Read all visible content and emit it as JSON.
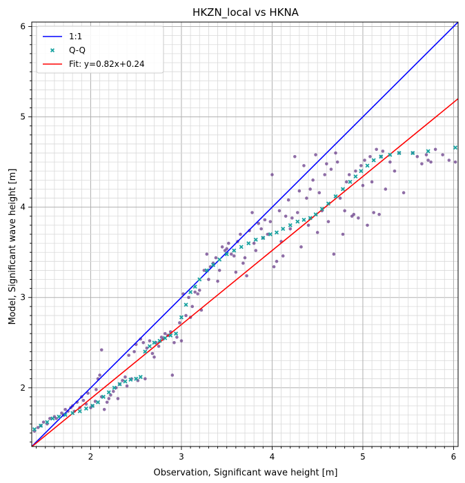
{
  "chart_data": {
    "type": "scatter",
    "title": "HKZN_local vs HKNA",
    "xlabel": "Observation, Significant wave height [m]",
    "ylabel": "Model, Significant wave height [m]",
    "xlim": [
      1.35,
      6.05
    ],
    "ylim": [
      1.35,
      6.05
    ],
    "xticks": [
      "2",
      "3",
      "4",
      "5",
      "6"
    ],
    "yticks": [
      "2",
      "3",
      "4",
      "5",
      "6"
    ],
    "grid": true,
    "legend_position": "top-left",
    "legend": [
      {
        "label": "1:1",
        "kind": "line",
        "color": "#0000ff"
      },
      {
        "label": "Q-Q",
        "kind": "marker",
        "color": "#17a2a0"
      },
      {
        "label": "Fit: y=0.82x+0.24",
        "kind": "line",
        "color": "#ff0000"
      }
    ],
    "fit": {
      "slope": 0.82,
      "intercept": 0.24
    },
    "points_color": "#6a3d8a",
    "qq_color": "#17a2a0",
    "scatter_points": [
      [
        1.38,
        1.52
      ],
      [
        1.42,
        1.56
      ],
      [
        1.45,
        1.58
      ],
      [
        1.48,
        1.62
      ],
      [
        1.52,
        1.6
      ],
      [
        1.55,
        1.66
      ],
      [
        1.6,
        1.68
      ],
      [
        1.62,
        1.66
      ],
      [
        1.68,
        1.72
      ],
      [
        1.7,
        1.7
      ],
      [
        1.72,
        1.76
      ],
      [
        1.75,
        1.74
      ],
      [
        1.78,
        1.78
      ],
      [
        1.8,
        1.8
      ],
      [
        1.82,
        1.74
      ],
      [
        1.85,
        1.84
      ],
      [
        1.88,
        1.78
      ],
      [
        1.9,
        1.9
      ],
      [
        1.92,
        1.86
      ],
      [
        1.95,
        1.82
      ],
      [
        1.97,
        1.94
      ],
      [
        2.0,
        1.78
      ],
      [
        2.02,
        1.8
      ],
      [
        2.05,
        1.85
      ],
      [
        2.06,
        1.98
      ],
      [
        2.08,
        2.1
      ],
      [
        2.1,
        2.14
      ],
      [
        2.12,
        2.42
      ],
      [
        2.12,
        1.9
      ],
      [
        2.15,
        1.76
      ],
      [
        2.18,
        1.84
      ],
      [
        2.2,
        1.88
      ],
      [
        2.22,
        1.92
      ],
      [
        2.25,
        1.96
      ],
      [
        2.28,
        2.0
      ],
      [
        2.3,
        1.88
      ],
      [
        2.32,
        2.04
      ],
      [
        2.35,
        2.08
      ],
      [
        2.38,
        2.12
      ],
      [
        2.4,
        2.02
      ],
      [
        2.42,
        2.36
      ],
      [
        2.45,
        2.1
      ],
      [
        2.48,
        2.4
      ],
      [
        2.5,
        2.48
      ],
      [
        2.52,
        2.08
      ],
      [
        2.55,
        2.54
      ],
      [
        2.58,
        2.5
      ],
      [
        2.6,
        2.1
      ],
      [
        2.62,
        2.44
      ],
      [
        2.65,
        2.52
      ],
      [
        2.68,
        2.38
      ],
      [
        2.7,
        2.34
      ],
      [
        2.72,
        2.5
      ],
      [
        2.75,
        2.46
      ],
      [
        2.78,
        2.56
      ],
      [
        2.8,
        2.54
      ],
      [
        2.82,
        2.6
      ],
      [
        2.85,
        2.58
      ],
      [
        2.88,
        2.62
      ],
      [
        2.9,
        2.14
      ],
      [
        2.92,
        2.5
      ],
      [
        2.95,
        2.56
      ],
      [
        2.98,
        2.72
      ],
      [
        3.0,
        2.52
      ],
      [
        3.02,
        3.04
      ],
      [
        3.05,
        2.8
      ],
      [
        3.08,
        3.0
      ],
      [
        3.1,
        2.78
      ],
      [
        3.12,
        2.9
      ],
      [
        3.15,
        3.06
      ],
      [
        3.18,
        3.04
      ],
      [
        3.2,
        3.08
      ],
      [
        3.22,
        2.86
      ],
      [
        3.25,
        3.3
      ],
      [
        3.28,
        3.48
      ],
      [
        3.3,
        3.2
      ],
      [
        3.32,
        3.34
      ],
      [
        3.35,
        3.38
      ],
      [
        3.38,
        3.44
      ],
      [
        3.4,
        3.18
      ],
      [
        3.42,
        3.3
      ],
      [
        3.45,
        3.56
      ],
      [
        3.48,
        3.52
      ],
      [
        3.5,
        3.54
      ],
      [
        3.52,
        3.6
      ],
      [
        3.55,
        3.48
      ],
      [
        3.58,
        3.46
      ],
      [
        3.6,
        3.28
      ],
      [
        3.62,
        3.62
      ],
      [
        3.65,
        3.7
      ],
      [
        3.68,
        3.38
      ],
      [
        3.7,
        3.44
      ],
      [
        3.72,
        3.24
      ],
      [
        3.75,
        3.74
      ],
      [
        3.78,
        3.94
      ],
      [
        3.8,
        3.6
      ],
      [
        3.82,
        3.52
      ],
      [
        3.85,
        3.82
      ],
      [
        3.88,
        3.76
      ],
      [
        3.9,
        3.66
      ],
      [
        3.92,
        3.86
      ],
      [
        3.95,
        3.7
      ],
      [
        3.98,
        3.84
      ],
      [
        4.0,
        4.36
      ],
      [
        4.02,
        3.34
      ],
      [
        4.05,
        3.4
      ],
      [
        4.08,
        3.96
      ],
      [
        4.1,
        3.62
      ],
      [
        4.12,
        3.46
      ],
      [
        4.15,
        3.9
      ],
      [
        4.18,
        4.08
      ],
      [
        4.2,
        3.76
      ],
      [
        4.22,
        3.88
      ],
      [
        4.25,
        4.56
      ],
      [
        4.28,
        3.94
      ],
      [
        4.3,
        4.18
      ],
      [
        4.32,
        3.56
      ],
      [
        4.35,
        4.46
      ],
      [
        4.38,
        4.1
      ],
      [
        4.4,
        3.8
      ],
      [
        4.42,
        4.2
      ],
      [
        4.45,
        4.3
      ],
      [
        4.48,
        4.58
      ],
      [
        4.5,
        3.72
      ],
      [
        4.52,
        4.16
      ],
      [
        4.55,
        3.96
      ],
      [
        4.58,
        4.36
      ],
      [
        4.6,
        4.48
      ],
      [
        4.62,
        3.84
      ],
      [
        4.65,
        4.42
      ],
      [
        4.68,
        3.48
      ],
      [
        4.7,
        4.6
      ],
      [
        4.72,
        4.5
      ],
      [
        4.75,
        4.1
      ],
      [
        4.78,
        3.7
      ],
      [
        4.8,
        3.96
      ],
      [
        4.82,
        4.28
      ],
      [
        4.85,
        4.36
      ],
      [
        4.88,
        3.9
      ],
      [
        4.9,
        3.92
      ],
      [
        4.92,
        4.4
      ],
      [
        4.95,
        3.88
      ],
      [
        4.98,
        4.46
      ],
      [
        5.0,
        4.24
      ],
      [
        5.02,
        4.52
      ],
      [
        5.05,
        3.8
      ],
      [
        5.08,
        4.56
      ],
      [
        5.1,
        4.28
      ],
      [
        5.12,
        3.94
      ],
      [
        5.15,
        4.64
      ],
      [
        5.18,
        3.92
      ],
      [
        5.2,
        4.56
      ],
      [
        5.22,
        4.62
      ],
      [
        5.25,
        4.2
      ],
      [
        5.3,
        4.5
      ],
      [
        5.35,
        4.4
      ],
      [
        5.4,
        4.6
      ],
      [
        5.45,
        4.16
      ],
      [
        5.55,
        4.6
      ],
      [
        5.6,
        4.56
      ],
      [
        5.65,
        4.48
      ],
      [
        5.7,
        4.58
      ],
      [
        5.72,
        4.52
      ],
      [
        5.75,
        4.5
      ],
      [
        5.8,
        4.64
      ],
      [
        5.88,
        4.58
      ],
      [
        5.95,
        4.52
      ],
      [
        6.02,
        4.5
      ]
    ],
    "qq_points": [
      [
        1.38,
        1.54
      ],
      [
        1.45,
        1.58
      ],
      [
        1.52,
        1.62
      ],
      [
        1.58,
        1.66
      ],
      [
        1.65,
        1.68
      ],
      [
        1.72,
        1.7
      ],
      [
        1.8,
        1.72
      ],
      [
        1.88,
        1.74
      ],
      [
        1.95,
        1.77
      ],
      [
        2.02,
        1.8
      ],
      [
        2.08,
        1.84
      ],
      [
        2.14,
        1.9
      ],
      [
        2.2,
        1.95
      ],
      [
        2.26,
        2.0
      ],
      [
        2.32,
        2.04
      ],
      [
        2.38,
        2.07
      ],
      [
        2.44,
        2.09
      ],
      [
        2.5,
        2.1
      ],
      [
        2.55,
        2.12
      ],
      [
        2.6,
        2.4
      ],
      [
        2.65,
        2.46
      ],
      [
        2.7,
        2.5
      ],
      [
        2.76,
        2.52
      ],
      [
        2.82,
        2.55
      ],
      [
        2.88,
        2.58
      ],
      [
        2.94,
        2.6
      ],
      [
        3.0,
        2.78
      ],
      [
        3.05,
        2.92
      ],
      [
        3.1,
        3.06
      ],
      [
        3.15,
        3.12
      ],
      [
        3.2,
        3.2
      ],
      [
        3.28,
        3.3
      ],
      [
        3.35,
        3.36
      ],
      [
        3.42,
        3.42
      ],
      [
        3.5,
        3.48
      ],
      [
        3.58,
        3.52
      ],
      [
        3.66,
        3.56
      ],
      [
        3.74,
        3.6
      ],
      [
        3.82,
        3.64
      ],
      [
        3.9,
        3.66
      ],
      [
        3.98,
        3.7
      ],
      [
        4.05,
        3.72
      ],
      [
        4.12,
        3.76
      ],
      [
        4.2,
        3.8
      ],
      [
        4.28,
        3.84
      ],
      [
        4.35,
        3.86
      ],
      [
        4.42,
        3.88
      ],
      [
        4.48,
        3.92
      ],
      [
        4.55,
        3.98
      ],
      [
        4.62,
        4.04
      ],
      [
        4.7,
        4.12
      ],
      [
        4.78,
        4.2
      ],
      [
        4.86,
        4.28
      ],
      [
        4.92,
        4.34
      ],
      [
        4.98,
        4.4
      ],
      [
        5.05,
        4.46
      ],
      [
        5.12,
        4.52
      ],
      [
        5.2,
        4.56
      ],
      [
        5.3,
        4.58
      ],
      [
        5.4,
        4.6
      ],
      [
        5.55,
        4.6
      ],
      [
        5.72,
        4.62
      ],
      [
        6.02,
        4.66
      ]
    ]
  }
}
